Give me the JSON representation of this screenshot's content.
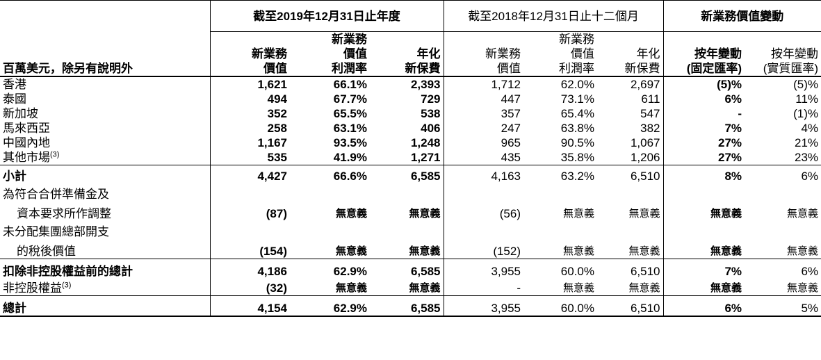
{
  "header": {
    "period_2019": "截至2019年12月31日止年度",
    "period_2018": "截至2018年12月31日止十二個月",
    "vonb_change": "新業務價值變動",
    "unit_label": "百萬美元，除另有說明外",
    "col_2019": {
      "vonb": [
        "新業務",
        "價值"
      ],
      "margin": [
        "新業務",
        "價值",
        "利潤率"
      ],
      "ape": [
        "年化",
        "新保費"
      ]
    },
    "col_2018": {
      "vonb": [
        "新業務",
        "價值"
      ],
      "margin": [
        "新業務",
        "價值",
        "利潤率"
      ],
      "ape": [
        "年化",
        "新保費"
      ]
    },
    "col_change": {
      "cer": [
        "按年變動",
        "(固定匯率)"
      ],
      "ar": [
        "按年變動",
        "(實質匯率)"
      ]
    }
  },
  "rows": {
    "hk": {
      "label": "香港",
      "v19": "1,621",
      "m19": "66.1%",
      "a19": "2,393",
      "v18": "1,712",
      "m18": "62.0%",
      "a18": "2,697",
      "cer": "(5)%",
      "ar": "(5)%"
    },
    "th": {
      "label": "泰國",
      "v19": "494",
      "m19": "67.7%",
      "a19": "729",
      "v18": "447",
      "m18": "73.1%",
      "a18": "611",
      "cer": "6%",
      "ar": "11%"
    },
    "sg": {
      "label": "新加坡",
      "v19": "352",
      "m19": "65.5%",
      "a19": "538",
      "v18": "357",
      "m18": "65.4%",
      "a18": "547",
      "cer": "-",
      "ar": "(1)%"
    },
    "my": {
      "label": "馬來西亞",
      "v19": "258",
      "m19": "63.1%",
      "a19": "406",
      "v18": "247",
      "m18": "63.8%",
      "a18": "382",
      "cer": "7%",
      "ar": "4%"
    },
    "cn": {
      "label": "中國內地",
      "v19": "1,167",
      "m19": "93.5%",
      "a19": "1,248",
      "v18": "965",
      "m18": "90.5%",
      "a18": "1,067",
      "cer": "27%",
      "ar": "21%"
    },
    "other": {
      "label": "其他市場",
      "note": "(3)",
      "v19": "535",
      "m19": "41.9%",
      "a19": "1,271",
      "v18": "435",
      "m18": "35.8%",
      "a18": "1,206",
      "cer": "27%",
      "ar": "23%"
    },
    "subtotal": {
      "label": "小計",
      "v19": "4,427",
      "m19": "66.6%",
      "a19": "6,585",
      "v18": "4,163",
      "m18": "63.2%",
      "a18": "6,510",
      "cer": "8%",
      "ar": "6%"
    },
    "adj1": {
      "label1": "為符合合併準備金及",
      "label2": "資本要求所作調整",
      "v19": "(87)",
      "m19": "無意義",
      "a19": "無意義",
      "v18": "(56)",
      "m18": "無意義",
      "a18": "無意義",
      "cer": "無意義",
      "ar": "無意義"
    },
    "adj2": {
      "label1": "未分配集團總部開支",
      "label2": "的稅後價值",
      "v19": "(154)",
      "m19": "無意義",
      "a19": "無意義",
      "v18": "(152)",
      "m18": "無意義",
      "a18": "無意義",
      "cer": "無意義",
      "ar": "無意義"
    },
    "pre_nci": {
      "label": "扣除非控股權益前的總計",
      "v19": "4,186",
      "m19": "62.9%",
      "a19": "6,585",
      "v18": "3,955",
      "m18": "60.0%",
      "a18": "6,510",
      "cer": "7%",
      "ar": "6%"
    },
    "nci": {
      "label": "非控股權益",
      "note": "(3)",
      "v19": "(32)",
      "m19": "無意義",
      "a19": "無意義",
      "v18": "-",
      "m18": "無意義",
      "a18": "無意義",
      "cer": "無意義",
      "ar": "無意義"
    },
    "total": {
      "label": "總計",
      "v19": "4,154",
      "m19": "62.9%",
      "a19": "6,585",
      "v18": "3,955",
      "m18": "60.0%",
      "a18": "6,510",
      "cer": "6%",
      "ar": "5%"
    }
  }
}
